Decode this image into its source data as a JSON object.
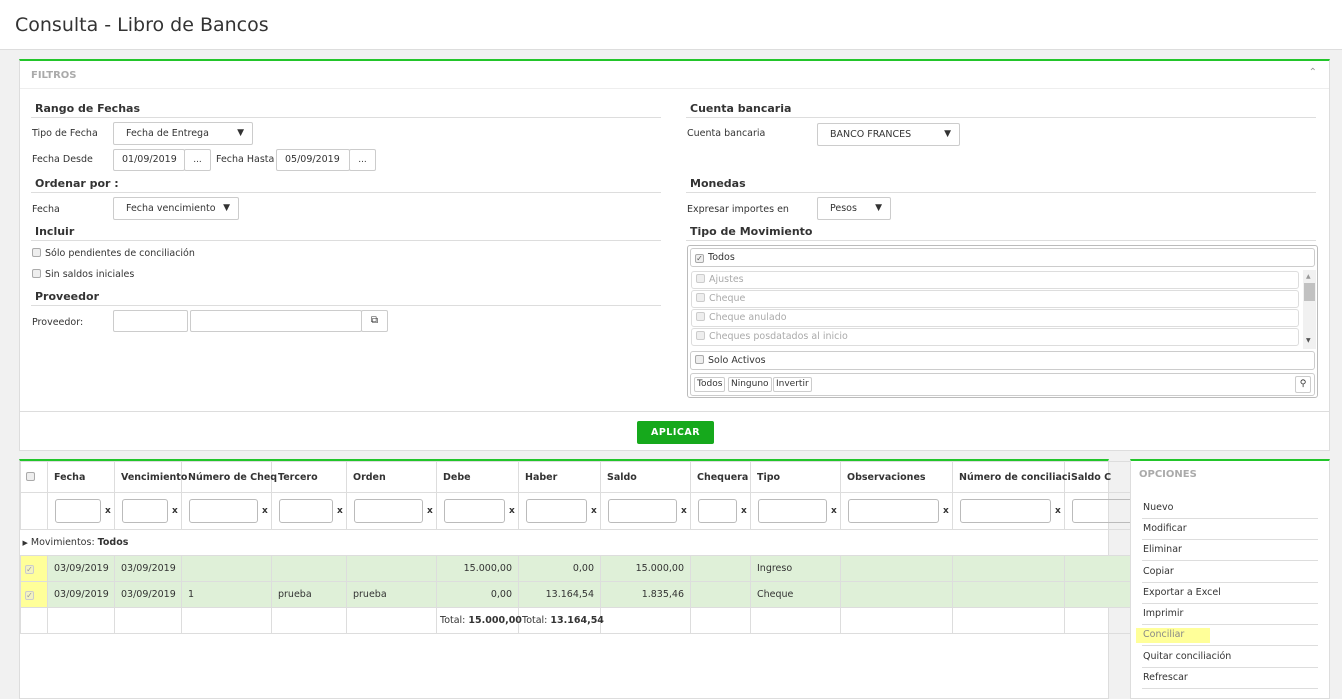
{
  "title": "Consulta - Libro de Bancos",
  "filters": {
    "header": "FILTROS",
    "rango": {
      "title": "Rango de Fechas",
      "tipo_label": "Tipo de Fecha",
      "tipo_value": "Fecha de Entrega",
      "desde_label": "Fecha Desde",
      "desde_value": "01/09/2019",
      "hasta_label": "Fecha Hasta",
      "hasta_value": "05/09/2019",
      "dots": "..."
    },
    "ordenar": {
      "title": "Ordenar por :",
      "label": "Fecha",
      "value": "Fecha vencimiento"
    },
    "incluir": {
      "title": "Incluir",
      "opt1": "Sólo pendientes de conciliación",
      "opt2": "Sin saldos iniciales"
    },
    "proveedor": {
      "title": "Proveedor",
      "label": "Proveedor:"
    },
    "cuenta": {
      "title": "Cuenta bancaria",
      "label": "Cuenta bancaria",
      "value": "BANCO FRANCES"
    },
    "monedas": {
      "title": "Monedas",
      "label": "Expresar importes en",
      "value": "Pesos"
    },
    "tipo_mov": {
      "title": "Tipo de Movimiento",
      "todos": "Todos",
      "items": [
        "Ajustes",
        "Cheque",
        "Cheque anulado",
        "Cheques posdatados al inicio"
      ],
      "solo_activos": "Solo Activos",
      "btn_todos": "Todos",
      "btn_ninguno": "Ninguno",
      "btn_invertir": "Invertir"
    },
    "apply": "APLICAR"
  },
  "grid": {
    "columns": [
      "Fecha",
      "Vencimiento",
      "Número de Cheq",
      "Tercero",
      "Orden",
      "Debe",
      "Haber",
      "Saldo",
      "Chequera",
      "Tipo",
      "Observaciones",
      "Número de conciliaci",
      "Saldo C"
    ],
    "group_label": "Movimientos:",
    "group_value": "Todos",
    "rows": [
      [
        "03/09/2019",
        "03/09/2019",
        "",
        "",
        "",
        "15.000,00",
        "0,00",
        "15.000,00",
        "",
        "Ingreso",
        "",
        "",
        ""
      ],
      [
        "03/09/2019",
        "03/09/2019",
        "1",
        "prueba",
        "prueba",
        "0,00",
        "13.164,54",
        "1.835,46",
        "",
        "Cheque",
        "",
        "",
        ""
      ]
    ],
    "total_label": "Total:",
    "total_debe": "15.000,00",
    "total_haber": "13.164,54"
  },
  "options": {
    "title": "OPCIONES",
    "items": [
      "Nuevo",
      "Modificar",
      "Eliminar",
      "Copiar",
      "Exportar a Excel",
      "Imprimir",
      "Conciliar",
      "Quitar conciliación",
      "Refrescar"
    ],
    "highlight_color": "#ffff99"
  },
  "colors": {
    "accent": "#22c52a",
    "row_selected": "#dff0d8"
  }
}
